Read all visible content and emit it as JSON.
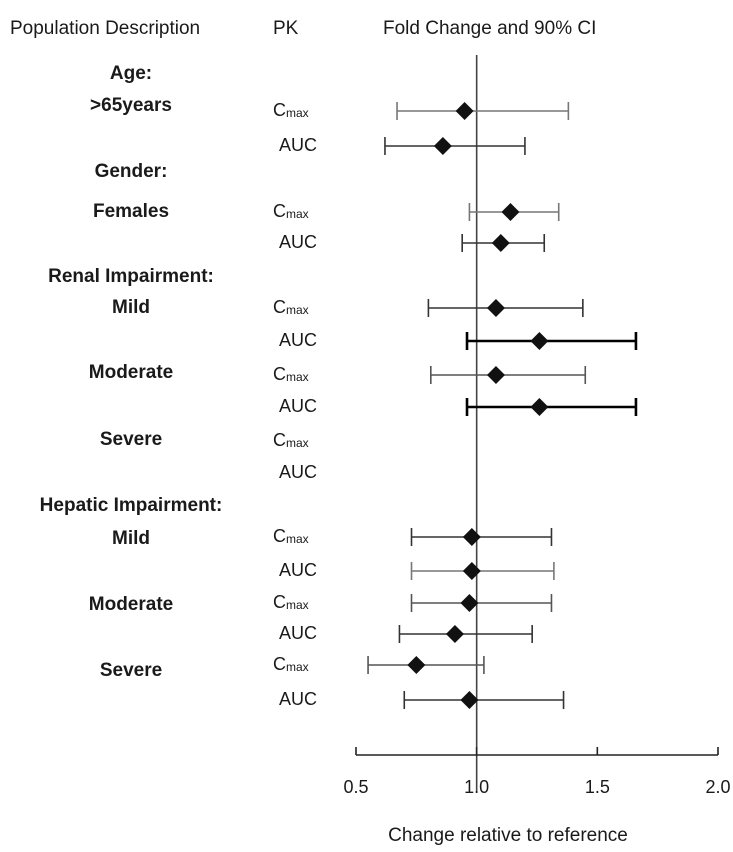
{
  "chart_data": {
    "type": "forest",
    "headers": {
      "population": "Population Description",
      "pk": "PK",
      "effect": "Fold Change and 90% CI"
    },
    "xlabel": "Change relative to reference",
    "xlim": [
      0.5,
      2.0
    ],
    "xticks": [
      "0.5",
      "1.0",
      "1.5",
      "2.0"
    ],
    "reference_line": 1.0,
    "pk_main": {
      "cmax": "C",
      "auc": "AUC"
    },
    "pk_sub": {
      "cmax": "max"
    },
    "groups": [
      {
        "label": "Age:",
        "rows": []
      },
      {
        "label": ">65years",
        "rows": [
          {
            "pk": "cmax",
            "est": 0.95,
            "lo": 0.67,
            "hi": 1.38,
            "color": "#777777"
          },
          {
            "pk": "auc",
            "est": 0.86,
            "lo": 0.62,
            "hi": 1.2,
            "color": "#333333"
          }
        ]
      },
      {
        "label": "Gender:",
        "rows": []
      },
      {
        "label": "Females",
        "rows": [
          {
            "pk": "cmax",
            "est": 1.14,
            "lo": 0.97,
            "hi": 1.34,
            "color": "#777777"
          },
          {
            "pk": "auc",
            "est": 1.1,
            "lo": 0.94,
            "hi": 1.28,
            "color": "#333333"
          }
        ]
      },
      {
        "label": "Renal Impairment:",
        "rows": []
      },
      {
        "label": "Mild",
        "rows": [
          {
            "pk": "cmax",
            "est": 1.08,
            "lo": 0.8,
            "hi": 1.44,
            "color": "#333333"
          },
          {
            "pk": "auc",
            "est": 1.26,
            "lo": 0.96,
            "hi": 1.66,
            "color": "#000000"
          }
        ]
      },
      {
        "label": "Moderate",
        "rows": [
          {
            "pk": "cmax",
            "est": 1.08,
            "lo": 0.81,
            "hi": 1.45,
            "color": "#555555"
          },
          {
            "pk": "auc",
            "est": 1.26,
            "lo": 0.96,
            "hi": 1.66,
            "color": "#000000"
          }
        ]
      },
      {
        "label": "Severe",
        "rows": [
          {
            "pk": "cmax"
          },
          {
            "pk": "auc"
          }
        ]
      },
      {
        "label": "Hepatic Impairment:",
        "rows": []
      },
      {
        "label": "Mild",
        "rows": [
          {
            "pk": "cmax",
            "est": 0.98,
            "lo": 0.73,
            "hi": 1.31,
            "color": "#333333"
          },
          {
            "pk": "auc",
            "est": 0.98,
            "lo": 0.73,
            "hi": 1.32,
            "color": "#777777"
          }
        ]
      },
      {
        "label": "Moderate",
        "rows": [
          {
            "pk": "cmax",
            "est": 0.97,
            "lo": 0.73,
            "hi": 1.31,
            "color": "#555555"
          },
          {
            "pk": "auc",
            "est": 0.91,
            "lo": 0.68,
            "hi": 1.23,
            "color": "#333333"
          }
        ]
      },
      {
        "label": "Severe",
        "rows": [
          {
            "pk": "cmax",
            "est": 0.75,
            "lo": 0.55,
            "hi": 1.03,
            "color": "#555555"
          },
          {
            "pk": "auc",
            "est": 0.97,
            "lo": 0.7,
            "hi": 1.36,
            "color": "#333333"
          }
        ]
      }
    ]
  }
}
